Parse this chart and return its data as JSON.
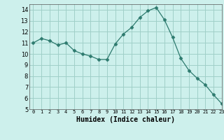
{
  "x": [
    0,
    1,
    2,
    3,
    4,
    5,
    6,
    7,
    8,
    9,
    10,
    11,
    12,
    13,
    14,
    15,
    16,
    17,
    18,
    19,
    20,
    21,
    22,
    23
  ],
  "y": [
    11.0,
    11.4,
    11.2,
    10.8,
    11.0,
    10.3,
    10.0,
    9.8,
    9.5,
    9.5,
    10.9,
    11.8,
    12.4,
    13.3,
    13.9,
    14.2,
    13.1,
    11.5,
    9.6,
    8.5,
    7.8,
    7.2,
    6.3,
    5.5
  ],
  "line_color": "#2d7a6e",
  "marker": "D",
  "marker_size": 2.5,
  "bg_color": "#cdf0ec",
  "grid_color": "#a0cfc8",
  "xlabel": "Humidex (Indice chaleur)",
  "ylim": [
    5,
    14.5
  ],
  "xlim": [
    -0.5,
    23
  ],
  "yticks": [
    5,
    6,
    7,
    8,
    9,
    10,
    11,
    12,
    13,
    14
  ],
  "xticks": [
    0,
    1,
    2,
    3,
    4,
    5,
    6,
    7,
    8,
    9,
    10,
    11,
    12,
    13,
    14,
    15,
    16,
    17,
    18,
    19,
    20,
    21,
    22,
    23
  ]
}
